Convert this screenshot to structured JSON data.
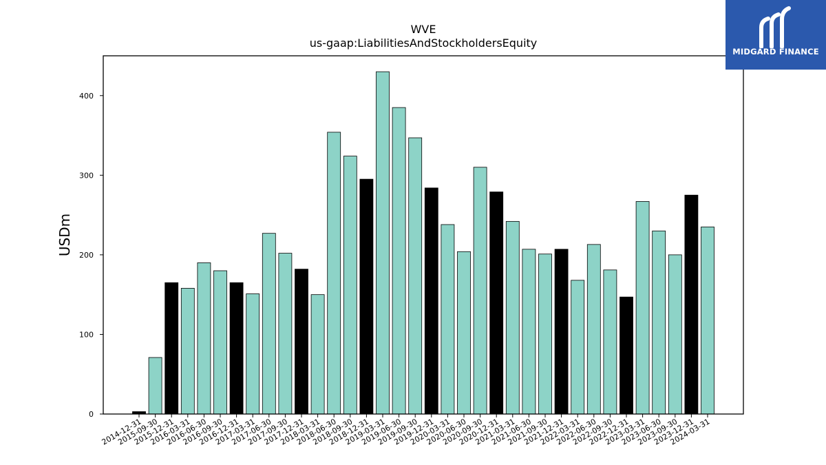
{
  "brand": {
    "name": "MIDGARD FINANCE",
    "bg_color": "#2B59AD",
    "icon": "midgard-logo-icon"
  },
  "colors": {
    "regular_bar": "#8DD3C7",
    "year_end_bar": "#000000"
  },
  "chart_data": {
    "type": "bar",
    "title": "WVE",
    "subtitle": "us-gaap:LiabilitiesAndStockholdersEquity",
    "xlabel": "",
    "ylabel": "USDm",
    "ylim": [
      0,
      450
    ],
    "yticks": [
      0,
      100,
      200,
      300,
      400
    ],
    "grid": false,
    "categories": [
      "2014-12-31",
      "2015-09-30",
      "2015-12-31",
      "2016-03-31",
      "2016-06-30",
      "2016-09-30",
      "2016-12-31",
      "2017-03-31",
      "2017-06-30",
      "2017-09-30",
      "2017-12-31",
      "2018-03-31",
      "2018-06-30",
      "2018-09-30",
      "2018-12-31",
      "2019-03-31",
      "2019-06-30",
      "2019-09-30",
      "2019-12-31",
      "2020-03-31",
      "2020-06-30",
      "2020-09-30",
      "2020-12-31",
      "2021-03-31",
      "2021-06-30",
      "2021-09-30",
      "2021-12-31",
      "2022-03-31",
      "2022-06-30",
      "2022-09-30",
      "2022-12-31",
      "2023-03-31",
      "2023-06-30",
      "2023-09-30",
      "2023-12-31",
      "2024-03-31"
    ],
    "values": [
      3,
      71,
      165,
      158,
      190,
      180,
      165,
      151,
      227,
      202,
      182,
      150,
      354,
      324,
      295,
      430,
      385,
      347,
      284,
      238,
      204,
      310,
      279,
      242,
      207,
      201,
      207,
      168,
      213,
      181,
      147,
      267,
      230,
      200,
      275,
      235
    ],
    "year_end_highlight": [
      true,
      false,
      true,
      false,
      false,
      false,
      true,
      false,
      false,
      false,
      true,
      false,
      false,
      false,
      true,
      false,
      false,
      false,
      true,
      false,
      false,
      false,
      true,
      false,
      false,
      false,
      true,
      false,
      false,
      false,
      true,
      false,
      false,
      false,
      true,
      false
    ]
  }
}
